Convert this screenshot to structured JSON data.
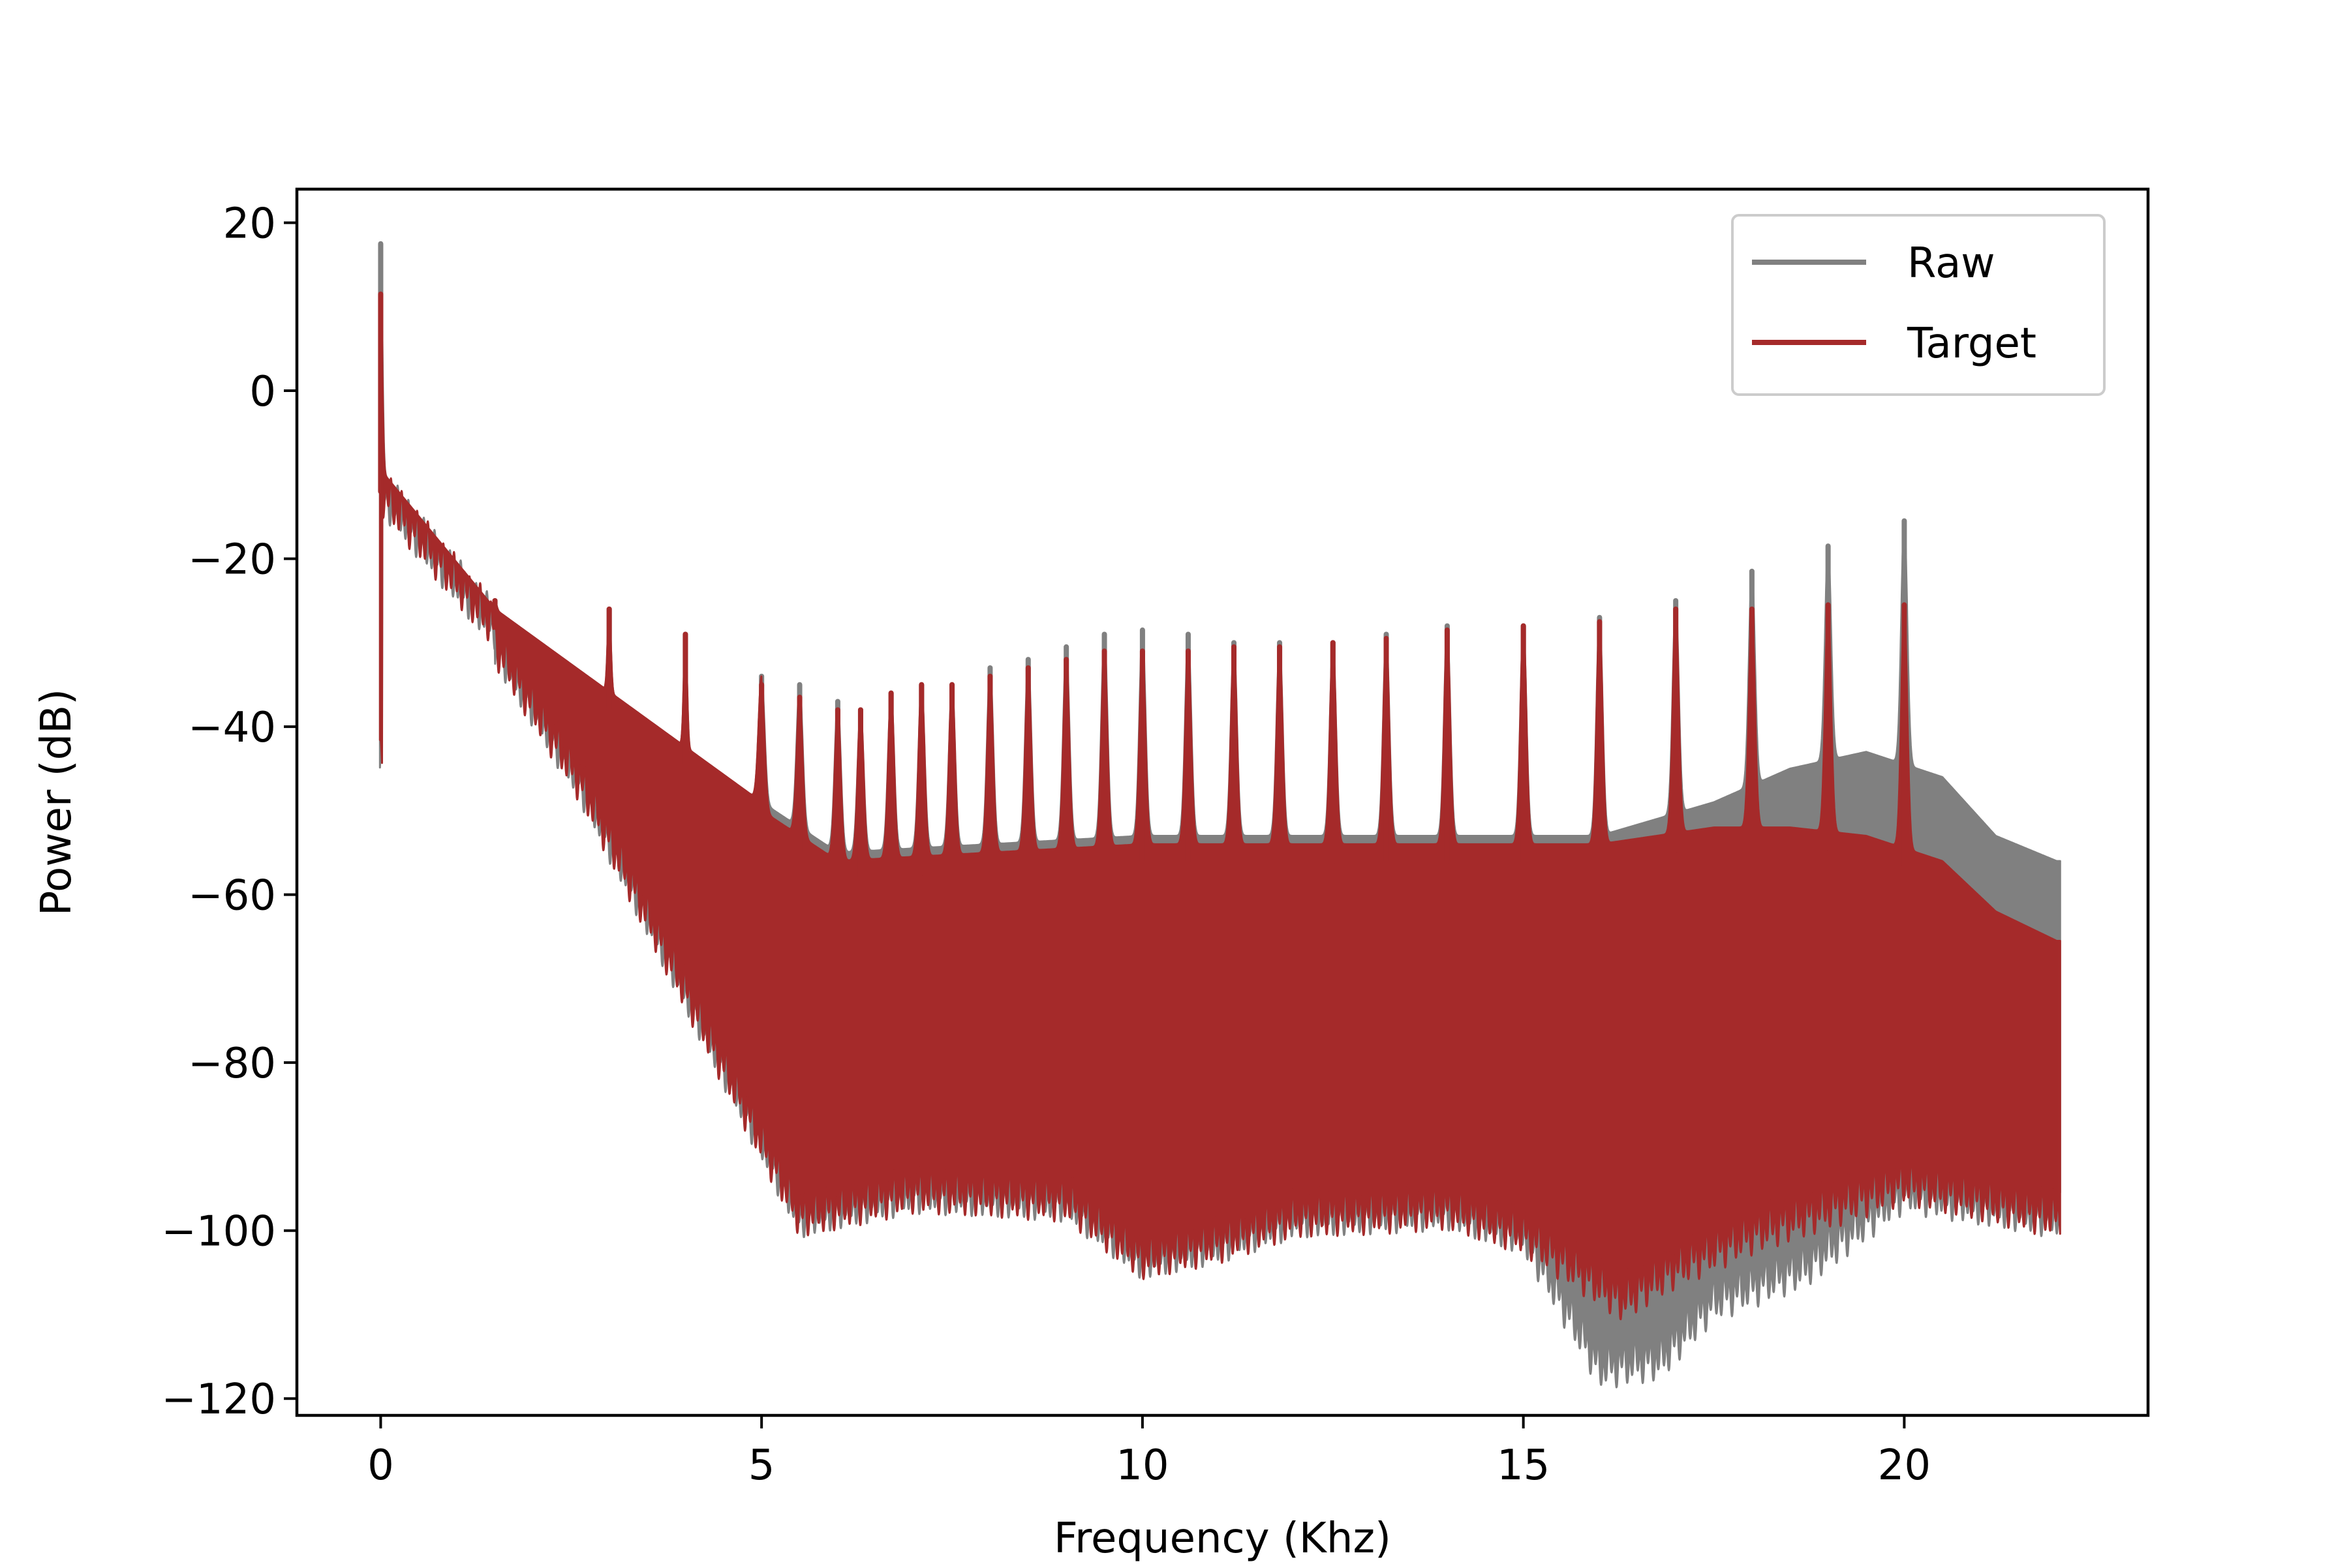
{
  "chart_data": {
    "type": "line",
    "title": "",
    "xlabel": "Frequency (Khz)",
    "ylabel": "Power (dB)",
    "xlim": [
      -1.1,
      23.2
    ],
    "ylim": [
      -122,
      24
    ],
    "x_ticks": [
      0,
      5,
      10,
      15,
      20
    ],
    "y_ticks": [
      20,
      0,
      -20,
      -40,
      -60,
      -80,
      -100,
      -120
    ],
    "x_tick_labels": [
      "0",
      "5",
      "10",
      "15",
      "20"
    ],
    "y_tick_labels": [
      "20",
      "0",
      "−20",
      "−40",
      "−60",
      "−80",
      "−100",
      "−120"
    ],
    "legend": {
      "position": "top-right",
      "entries": [
        {
          "label": "Raw",
          "color": "#808080"
        },
        {
          "label": "Target",
          "color": "#a52a2a"
        }
      ]
    },
    "grid": false,
    "series": [
      {
        "name": "Raw",
        "color": "#808080",
        "peaks": [
          {
            "x": 0.0,
            "y": 17.5
          },
          {
            "x": 1.5,
            "y": -25
          },
          {
            "x": 3.0,
            "y": -26
          },
          {
            "x": 4.0,
            "y": -29
          },
          {
            "x": 5.0,
            "y": -34
          },
          {
            "x": 5.5,
            "y": -35
          },
          {
            "x": 6.0,
            "y": -37
          },
          {
            "x": 6.3,
            "y": -38
          },
          {
            "x": 6.7,
            "y": -36
          },
          {
            "x": 7.1,
            "y": -35
          },
          {
            "x": 7.5,
            "y": -35
          },
          {
            "x": 8.0,
            "y": -33
          },
          {
            "x": 8.5,
            "y": -32
          },
          {
            "x": 9.0,
            "y": -30.5
          },
          {
            "x": 9.5,
            "y": -29
          },
          {
            "x": 10.0,
            "y": -28.5
          },
          {
            "x": 10.6,
            "y": -29
          },
          {
            "x": 11.2,
            "y": -30
          },
          {
            "x": 11.8,
            "y": -30
          },
          {
            "x": 12.5,
            "y": -30
          },
          {
            "x": 13.2,
            "y": -29
          },
          {
            "x": 14.0,
            "y": -28
          },
          {
            "x": 15.0,
            "y": -28
          },
          {
            "x": 16.0,
            "y": -27
          },
          {
            "x": 17.0,
            "y": -25
          },
          {
            "x": 18.0,
            "y": -21.5
          },
          {
            "x": 19.0,
            "y": -18.5
          },
          {
            "x": 20.0,
            "y": -15.5
          }
        ],
        "upper_floor": [
          {
            "x": 5.0,
            "y": -49
          },
          {
            "x": 6.0,
            "y": -55
          },
          {
            "x": 8.0,
            "y": -54
          },
          {
            "x": 10.0,
            "y": -53
          },
          {
            "x": 12.0,
            "y": -53
          },
          {
            "x": 14.0,
            "y": -53
          },
          {
            "x": 16.0,
            "y": -53
          },
          {
            "x": 17.5,
            "y": -49
          },
          {
            "x": 18.5,
            "y": -45
          },
          {
            "x": 19.5,
            "y": -43
          },
          {
            "x": 20.5,
            "y": -46
          },
          {
            "x": 21.2,
            "y": -53
          },
          {
            "x": 22.0,
            "y": -56
          }
        ],
        "lower_floor": [
          {
            "x": 5.5,
            "y": -98
          },
          {
            "x": 7.0,
            "y": -95
          },
          {
            "x": 9.0,
            "y": -96
          },
          {
            "x": 10.0,
            "y": -103
          },
          {
            "x": 11.0,
            "y": -101
          },
          {
            "x": 12.0,
            "y": -98
          },
          {
            "x": 14.0,
            "y": -97
          },
          {
            "x": 15.0,
            "y": -100
          },
          {
            "x": 16.0,
            "y": -116
          },
          {
            "x": 16.8,
            "y": -115
          },
          {
            "x": 17.5,
            "y": -108
          },
          {
            "x": 18.7,
            "y": -104
          },
          {
            "x": 20.0,
            "y": -95
          },
          {
            "x": 22.0,
            "y": -98
          }
        ]
      },
      {
        "name": "Target",
        "color": "#a52a2a",
        "peaks": [
          {
            "x": 0.0,
            "y": 11.5
          },
          {
            "x": 1.5,
            "y": -25
          },
          {
            "x": 3.0,
            "y": -26
          },
          {
            "x": 4.0,
            "y": -29
          },
          {
            "x": 5.0,
            "y": -35
          },
          {
            "x": 5.5,
            "y": -36.5
          },
          {
            "x": 6.0,
            "y": -38
          },
          {
            "x": 6.3,
            "y": -38
          },
          {
            "x": 6.7,
            "y": -36
          },
          {
            "x": 7.1,
            "y": -35
          },
          {
            "x": 7.5,
            "y": -35
          },
          {
            "x": 8.0,
            "y": -34
          },
          {
            "x": 8.5,
            "y": -33
          },
          {
            "x": 9.0,
            "y": -32
          },
          {
            "x": 9.5,
            "y": -31
          },
          {
            "x": 10.0,
            "y": -31
          },
          {
            "x": 10.6,
            "y": -31
          },
          {
            "x": 11.2,
            "y": -30.5
          },
          {
            "x": 11.8,
            "y": -30.5
          },
          {
            "x": 12.5,
            "y": -30
          },
          {
            "x": 13.2,
            "y": -29.5
          },
          {
            "x": 14.0,
            "y": -28.5
          },
          {
            "x": 15.0,
            "y": -28
          },
          {
            "x": 16.0,
            "y": -27.5
          },
          {
            "x": 17.0,
            "y": -26
          },
          {
            "x": 18.0,
            "y": -26
          },
          {
            "x": 19.0,
            "y": -25.5
          },
          {
            "x": 20.0,
            "y": -25.5
          }
        ],
        "upper_floor": [
          {
            "x": 5.0,
            "y": -50
          },
          {
            "x": 6.0,
            "y": -56
          },
          {
            "x": 8.0,
            "y": -55
          },
          {
            "x": 10.0,
            "y": -54
          },
          {
            "x": 12.0,
            "y": -54
          },
          {
            "x": 14.0,
            "y": -54
          },
          {
            "x": 16.0,
            "y": -54
          },
          {
            "x": 17.5,
            "y": -52
          },
          {
            "x": 18.5,
            "y": -52
          },
          {
            "x": 19.5,
            "y": -53
          },
          {
            "x": 20.5,
            "y": -56
          },
          {
            "x": 21.2,
            "y": -62
          },
          {
            "x": 22.0,
            "y": -65.5
          }
        ],
        "lower_floor": [
          {
            "x": 5.5,
            "y": -98
          },
          {
            "x": 7.0,
            "y": -95
          },
          {
            "x": 9.0,
            "y": -96
          },
          {
            "x": 10.0,
            "y": -103
          },
          {
            "x": 11.0,
            "y": -101
          },
          {
            "x": 12.0,
            "y": -98
          },
          {
            "x": 14.0,
            "y": -97
          },
          {
            "x": 15.0,
            "y": -100
          },
          {
            "x": 16.3,
            "y": -108
          },
          {
            "x": 17.0,
            "y": -104
          },
          {
            "x": 18.0,
            "y": -100
          },
          {
            "x": 20.0,
            "y": -94
          },
          {
            "x": 22.0,
            "y": -98
          }
        ]
      }
    ]
  }
}
